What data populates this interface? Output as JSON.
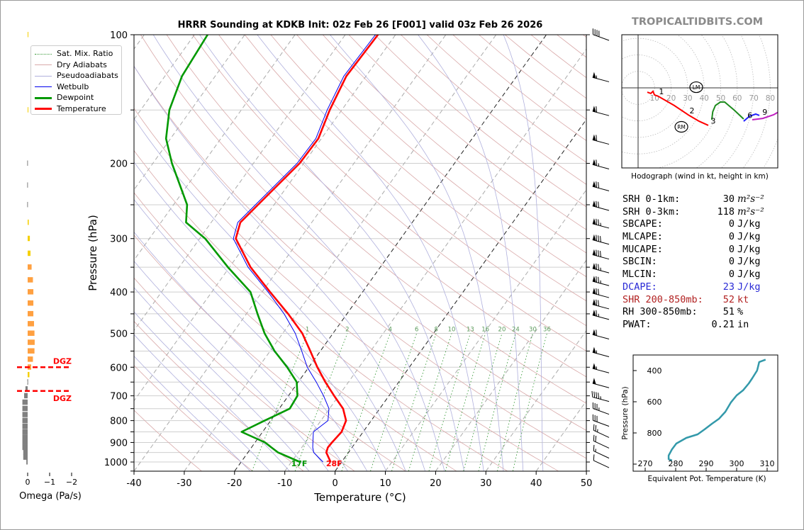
{
  "title": "HRRR Sounding at KDKB Init: 02z Feb 26 [F001] valid 03z Feb 26 2026",
  "brand": "TROPICALTIDBITS.COM",
  "legend": [
    {
      "label": "Sat. Mix. Ratio",
      "color": "#3a9a3a",
      "style": "dotted"
    },
    {
      "label": "Dry Adiabats",
      "color": "#d9a9a9",
      "style": "solid"
    },
    {
      "label": "Pseudoadiabats",
      "color": "#b0b0dd",
      "style": "solid"
    },
    {
      "label": "Wetbulb",
      "color": "#0000ee",
      "style": "solid"
    },
    {
      "label": "Dewpoint",
      "color": "#009900",
      "style": "thick"
    },
    {
      "label": "Temperature",
      "color": "#ff0000",
      "style": "thick"
    }
  ],
  "stats": [
    {
      "label": "SRH 0-1km:",
      "value": "30",
      "unit": "m²s⁻²",
      "color": "#000000"
    },
    {
      "label": "SRH 0-3km:",
      "value": "118",
      "unit": "m²s⁻²",
      "color": "#000000"
    },
    {
      "label": "SBCAPE:",
      "value": "0",
      "unit": "J/kg",
      "color": "#000000"
    },
    {
      "label": "MLCAPE:",
      "value": "0",
      "unit": "J/kg",
      "color": "#000000"
    },
    {
      "label": "MUCAPE:",
      "value": "0",
      "unit": "J/kg",
      "color": "#000000"
    },
    {
      "label": "SBCIN:",
      "value": "0",
      "unit": "J/kg",
      "color": "#000000"
    },
    {
      "label": "MLCIN:",
      "value": "0",
      "unit": "J/kg",
      "color": "#000000"
    },
    {
      "label": "DCAPE:",
      "value": "23",
      "unit": "J/kg",
      "color": "#2a2ad6"
    },
    {
      "label": "SHR 200-850mb:",
      "value": "52",
      "unit": "kt",
      "color": "#b22222"
    },
    {
      "label": "RH 300-850mb:",
      "value": "51",
      "unit": "%",
      "color": "#000000"
    },
    {
      "label": "PWAT:",
      "value": "0.21",
      "unit": "in",
      "color": "#000000"
    }
  ],
  "chart_data": [
    {
      "type": "line",
      "name": "skew-t",
      "xlabel": "Temperature (°C)",
      "ylabel": "Pressure (hPa)",
      "xlim": [
        -40,
        50
      ],
      "ylim": [
        1050,
        100
      ],
      "yscale": "log",
      "xticks": [
        -40,
        -30,
        -20,
        -10,
        0,
        10,
        20,
        30,
        40,
        50
      ],
      "yticks": [
        100,
        200,
        300,
        400,
        500,
        600,
        700,
        800,
        900,
        1000
      ],
      "grid": true,
      "legend_position": "top-left",
      "mixing_ratio_labels": [
        "1",
        "2",
        "4",
        "6",
        "8",
        "10",
        "13",
        "16",
        "20",
        "24",
        "30",
        "36"
      ],
      "surface_labels": {
        "dewpoint": "17F",
        "temperature": "28F"
      },
      "pressure": [
        1000,
        950,
        925,
        900,
        850,
        800,
        750,
        700,
        650,
        600,
        550,
        500,
        450,
        400,
        350,
        300,
        275,
        250,
        200,
        175,
        150,
        125,
        100
      ],
      "series": [
        {
          "name": "Temperature",
          "color": "#ff0000",
          "values": [
            -2.2,
            -4.4,
            -4.8,
            -4.7,
            -4.3,
            -5.0,
            -7.3,
            -10.9,
            -14.6,
            -18.3,
            -22.0,
            -26.1,
            -31.7,
            -38.4,
            -45.8,
            -52.8,
            -54.2,
            -53.2,
            -50.8,
            -50.6,
            -52.4,
            -53.9,
            -53.5
          ]
        },
        {
          "name": "Dewpoint",
          "color": "#009900",
          "values": [
            -8.3,
            -14.0,
            -16.0,
            -18.0,
            -24.2,
            -21.2,
            -17.9,
            -18.2,
            -20.3,
            -24.3,
            -29.1,
            -33.6,
            -37.8,
            -42.3,
            -50.3,
            -58.9,
            -65.0,
            -67.3,
            -76.2,
            -80.9,
            -84.3,
            -86.6,
            -87.4
          ]
        },
        {
          "name": "Wetbulb",
          "color": "#0000ee",
          "values": [
            -3.7,
            -6.9,
            -7.8,
            -8.5,
            -9.9,
            -8.6,
            -10.1,
            -13.0,
            -16.4,
            -20.3,
            -23.7,
            -27.5,
            -32.5,
            -38.8,
            -46.3,
            -53.3,
            -54.7,
            -53.7,
            -51.3,
            -51.1,
            -52.9,
            -54.4,
            -54.0
          ]
        }
      ],
      "winds_kt": [
        [
          1000,
          295,
          10
        ],
        [
          950,
          295,
          15
        ],
        [
          900,
          295,
          20
        ],
        [
          850,
          295,
          25
        ],
        [
          800,
          290,
          30
        ],
        [
          750,
          290,
          35
        ],
        [
          700,
          285,
          45
        ],
        [
          650,
          285,
          50
        ],
        [
          600,
          285,
          55
        ],
        [
          550,
          285,
          55
        ],
        [
          500,
          285,
          60
        ],
        [
          450,
          285,
          65
        ],
        [
          425,
          285,
          70
        ],
        [
          400,
          285,
          70
        ],
        [
          375,
          285,
          75
        ],
        [
          350,
          285,
          75
        ],
        [
          325,
          285,
          80
        ],
        [
          300,
          285,
          80
        ],
        [
          275,
          285,
          75
        ],
        [
          250,
          285,
          70
        ],
        [
          225,
          285,
          70
        ],
        [
          200,
          285,
          65
        ],
        [
          175,
          285,
          60
        ],
        [
          150,
          285,
          60
        ],
        [
          125,
          285,
          55
        ],
        [
          100,
          290,
          40
        ]
      ]
    },
    {
      "type": "bar",
      "name": "omega",
      "xlabel": "Omega (Pa/s)",
      "xticks": [
        "0",
        "−1",
        "−2"
      ],
      "xlim": [
        0.5,
        -2
      ],
      "dgz_label": "DGZ",
      "dgz_pressures": [
        600,
        682
      ],
      "pressure": [
        100,
        150,
        200,
        225,
        250,
        275,
        300,
        325,
        350,
        375,
        400,
        425,
        450,
        475,
        500,
        525,
        550,
        575,
        600,
        625,
        650,
        675,
        700,
        725,
        750,
        775,
        800,
        825,
        850,
        875,
        900,
        925,
        950,
        975,
        1000
      ],
      "values": [
        -0.02,
        -0.02,
        0.02,
        0.02,
        0.02,
        -0.05,
        -0.1,
        -0.13,
        -0.18,
        -0.24,
        -0.26,
        -0.26,
        -0.26,
        -0.29,
        -0.31,
        -0.32,
        -0.31,
        -0.24,
        -0.16,
        -0.08,
        0.01,
        0.1,
        0.16,
        0.24,
        0.24,
        0.24,
        0.24,
        0.24,
        0.24,
        0.24,
        0.24,
        0.24,
        0.2,
        0.2,
        0.06
      ]
    },
    {
      "type": "line",
      "name": "hodograph",
      "xlabel": "Hodograph (wind in kt, height in km)",
      "ring_labels": [
        "10",
        "20",
        "30",
        "40",
        "50",
        "60",
        "70",
        "80"
      ],
      "segments": [
        {
          "color": "#ff0000",
          "points": [
            [
              5.6,
              -2.6
            ],
            [
              7.7,
              -3.4
            ],
            [
              9.0,
              -2.1
            ],
            [
              9.9,
              -4.3
            ],
            [
              12.4,
              -5.2
            ],
            [
              21.9,
              -10.7
            ],
            [
              30.9,
              -16.7
            ],
            [
              36.9,
              -20.2
            ],
            [
              42.5,
              -22.7
            ]
          ]
        },
        {
          "color": "#1e8b1e",
          "points": [
            [
              44.6,
              -19.3
            ],
            [
              45.2,
              -14.5
            ],
            [
              46.8,
              -10.7
            ],
            [
              49.8,
              -8.6
            ],
            [
              52.4,
              -8.6
            ],
            [
              58.4,
              -13.7
            ],
            [
              63.9,
              -18.9
            ]
          ]
        },
        {
          "color": "#2020ff",
          "points": [
            [
              63.9,
              -20.2
            ],
            [
              67.4,
              -17.2
            ],
            [
              71.2,
              -15.9
            ],
            [
              73.4,
              -16.7
            ]
          ]
        },
        {
          "color": "#c020c0",
          "points": [
            [
              69.1,
              -19.3
            ],
            [
              75.5,
              -18.5
            ],
            [
              82.0,
              -16.3
            ],
            [
              86.0,
              -14.0
            ]
          ]
        }
      ],
      "height_labels": [
        {
          "label": "1",
          "u": 12.4,
          "v": -5.2
        },
        {
          "label": "2",
          "u": 30.9,
          "v": -16.7
        },
        {
          "label": "3",
          "u": 43.8,
          "v": -23.0
        },
        {
          "label": "6",
          "u": 66.0,
          "v": -19.5
        },
        {
          "label": "9",
          "u": 75.0,
          "v": -17.5
        }
      ],
      "storm_motion": [
        {
          "label": "LM",
          "u": 35.2,
          "v": 0.4
        },
        {
          "label": "RM",
          "u": 26.2,
          "v": -23.6
        }
      ]
    },
    {
      "type": "line",
      "name": "theta-e",
      "xlabel": "Equivalent Pot. Temperature (K)",
      "ylabel": "Pressure (hPa)",
      "xlim": [
        266,
        313
      ],
      "ylim": [
        1000,
        327
      ],
      "xticks": [
        270,
        280,
        290,
        300,
        310
      ],
      "yticks": [
        400,
        600,
        800
      ],
      "color": "#3399aa",
      "theta_e": [
        309.5,
        307.4,
        307.0,
        306.7,
        305.1,
        304.0,
        302.1,
        300.0,
        298.1,
        296.3,
        294.2,
        291.9,
        289.5,
        287.2,
        283.5,
        280.2,
        278.8,
        277.7,
        277.7,
        278.8
      ],
      "pressure": [
        330,
        345,
        377,
        400,
        450,
        482,
        527,
        559,
        605,
        664,
        709,
        741,
        777,
        809,
        832,
        868,
        905,
        945,
        968,
        977
      ]
    }
  ]
}
